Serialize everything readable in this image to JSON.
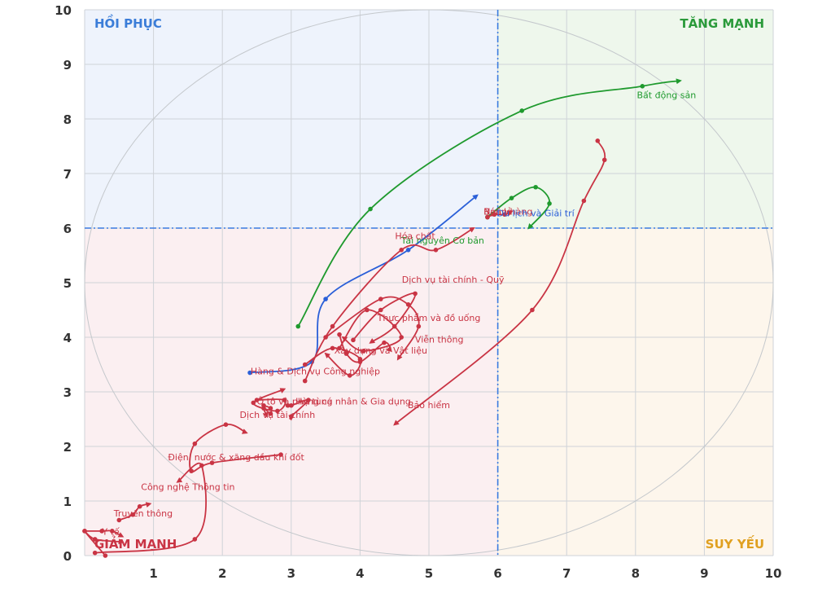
{
  "chart_data": {
    "type": "line",
    "x": {
      "min": 0,
      "max": 10,
      "ticks": [
        0,
        1,
        2,
        3,
        4,
        5,
        6,
        7,
        8,
        9,
        10
      ]
    },
    "y": {
      "min": 0,
      "max": 10,
      "ticks": [
        0,
        1,
        2,
        3,
        4,
        5,
        6,
        7,
        8,
        9,
        10
      ]
    },
    "threshold": {
      "x": 6,
      "y": 6
    },
    "grid": true,
    "quadrants": {
      "top_left": {
        "label": "HỒI PHỤC",
        "color": "#3b7dd8",
        "bg": "#eef3fc"
      },
      "top_right": {
        "label": "TĂNG MẠNH",
        "color": "#2a9a3a",
        "bg": "#eef7ec"
      },
      "bottom_left": {
        "label": "GIẢM MẠNH",
        "color": "#c93444",
        "bg": "#fbeff1"
      },
      "bottom_right": {
        "label": "SUY YẾU",
        "color": "#e0a020",
        "bg": "#fdf6ec"
      }
    },
    "colors": {
      "red": "#c93444",
      "green": "#1f9a2e",
      "blue": "#2a5fd8",
      "threshold": "#3a7be0"
    },
    "series": [
      {
        "name": "Bất động sản",
        "color": "green",
        "points": [
          [
            3.1,
            4.2
          ],
          [
            4.15,
            6.35
          ],
          [
            6.35,
            8.15
          ],
          [
            8.1,
            8.6
          ],
          [
            8.65,
            8.7
          ]
        ]
      },
      {
        "name": "Truyền thông",
        "color": "blue",
        "points": [
          [
            2.4,
            3.35
          ],
          [
            3.3,
            3.55
          ],
          [
            3.5,
            4.7
          ],
          [
            4.7,
            5.6
          ],
          [
            5.7,
            6.6
          ]
        ]
      },
      {
        "name": "Tài nguyên Cơ bản",
        "color": "green",
        "points": [
          [
            5.85,
            6.2
          ],
          [
            6.2,
            6.55
          ],
          [
            6.55,
            6.75
          ],
          [
            6.75,
            6.45
          ],
          [
            6.45,
            6.0
          ]
        ]
      },
      {
        "name": "Hóa chất",
        "color": "red",
        "points": [
          [
            7.45,
            7.6
          ],
          [
            7.55,
            7.25
          ],
          [
            7.25,
            6.5
          ],
          [
            6.5,
            4.5
          ],
          [
            4.5,
            2.4
          ]
        ]
      },
      {
        "name": "Dịch vụ tài chính - Quỹ",
        "color": "red",
        "points": [
          [
            3.2,
            3.2
          ],
          [
            3.6,
            4.2
          ],
          [
            4.6,
            5.6
          ],
          [
            5.1,
            5.6
          ],
          [
            5.65,
            6.0
          ]
        ]
      },
      {
        "name": "Thực phẩm và đồ uống",
        "color": "red",
        "points": [
          [
            3.5,
            4.0
          ],
          [
            4.3,
            4.7
          ],
          [
            4.7,
            4.6
          ],
          [
            4.85,
            4.2
          ],
          [
            4.55,
            3.6
          ]
        ]
      },
      {
        "name": "Viễn thông",
        "color": "red",
        "points": [
          [
            3.9,
            3.95
          ],
          [
            4.3,
            4.5
          ],
          [
            4.8,
            4.8
          ],
          [
            4.5,
            4.2
          ],
          [
            4.15,
            3.9
          ]
        ]
      },
      {
        "name": "Xây dựng và Vật liệu",
        "color": "red",
        "points": [
          [
            3.7,
            3.8
          ],
          [
            4.1,
            4.5
          ],
          [
            4.6,
            4.0
          ],
          [
            4.05,
            3.75
          ],
          [
            3.75,
            4.0
          ]
        ]
      },
      {
        "name": "Hàng & Dịch vụ Công nghiệp",
        "color": "red",
        "points": [
          [
            3.2,
            3.5
          ],
          [
            3.6,
            3.8
          ],
          [
            4.0,
            3.6
          ],
          [
            3.85,
            3.3
          ],
          [
            3.5,
            3.7
          ]
        ]
      },
      {
        "name": "Ô tô và phụ tùng",
        "color": "red",
        "points": [
          [
            2.5,
            2.85
          ],
          [
            2.9,
            2.85
          ],
          [
            2.8,
            2.65
          ],
          [
            2.45,
            2.8
          ],
          [
            2.9,
            3.05
          ]
        ]
      },
      {
        "name": "Hàng cá nhân & Gia dụng",
        "color": "red",
        "points": [
          [
            2.95,
            2.75
          ],
          [
            3.0,
            2.75
          ],
          [
            3.25,
            2.85
          ],
          [
            3.0,
            2.55
          ],
          [
            3.0,
            2.5
          ]
        ]
      },
      {
        "name": "Dịch vụ tài chính",
        "color": "red",
        "points": [
          [
            2.6,
            2.75
          ],
          [
            2.7,
            2.7
          ],
          [
            2.7,
            2.6
          ],
          [
            2.6,
            2.7
          ],
          [
            2.65,
            2.55
          ]
        ]
      },
      {
        "name": "Bảo hiểm",
        "color": "red",
        "points": [
          [
            3.7,
            4.05
          ],
          [
            3.8,
            3.7
          ],
          [
            4.0,
            3.55
          ],
          [
            4.35,
            3.9
          ],
          [
            4.45,
            3.75
          ]
        ]
      },
      {
        "name": "Điện, nước & xăng dầu khí đốt",
        "color": "red",
        "points": [
          [
            2.85,
            1.85
          ],
          [
            1.85,
            1.7
          ],
          [
            1.55,
            1.55
          ],
          [
            1.6,
            2.05
          ],
          [
            2.05,
            2.4
          ],
          [
            2.35,
            2.25
          ]
        ]
      },
      {
        "name": "Công nghệ Thông tin",
        "color": "red",
        "points": [
          [
            0.15,
            0.05
          ],
          [
            1.6,
            0.3
          ],
          [
            1.7,
            1.65
          ],
          [
            1.35,
            1.35
          ]
        ]
      },
      {
        "name": "Y tế",
        "color": "red",
        "points": [
          [
            0.0,
            0.45
          ],
          [
            0.25,
            0.45
          ],
          [
            0.4,
            0.45
          ],
          [
            0.55,
            0.35
          ]
        ]
      },
      {
        "name": "Ngân hàng",
        "color": "red",
        "points": [
          [
            0.3,
            0.0
          ],
          [
            0.0,
            0.45
          ],
          [
            0.15,
            0.3
          ],
          [
            0.55,
            0.25
          ]
        ]
      },
      {
        "name": "Bán lẻ",
        "color": "red",
        "points": [
          [
            0.5,
            0.65
          ],
          [
            0.7,
            0.75
          ],
          [
            0.8,
            0.9
          ],
          [
            0.95,
            0.95
          ]
        ]
      },
      {
        "name": "Du lịch và Giải trí",
        "color": "red",
        "points": [
          [
            5.85,
            6.2
          ],
          [
            5.95,
            6.25
          ],
          [
            6.1,
            6.25
          ],
          [
            6.2,
            6.3
          ]
        ]
      }
    ],
    "labels": [
      {
        "text": "Bất động sản",
        "x": 8.45,
        "y": 8.38,
        "color": "green"
      },
      {
        "text": "Tài nguyên Cơ bản",
        "x": 5.2,
        "y": 5.72,
        "color": "green"
      },
      {
        "text": "Truyền thông",
        "x": 0.85,
        "y": 0.72,
        "color": "red"
      },
      {
        "text": "Hóa chất",
        "x": 4.8,
        "y": 5.8,
        "color": "red"
      },
      {
        "text": "Dịch vụ tài chính - Quỹ",
        "x": 5.35,
        "y": 5.0,
        "color": "red"
      },
      {
        "text": "Thực phẩm và đồ uống",
        "x": 5.0,
        "y": 4.3,
        "color": "red"
      },
      {
        "text": "Viễn thông",
        "x": 5.15,
        "y": 3.9,
        "color": "red"
      },
      {
        "text": "Xây dựng và Vật liệu",
        "x": 4.3,
        "y": 3.7,
        "color": "red"
      },
      {
        "text": "Hàng & Dịch vụ Công nghiệp",
        "x": 3.35,
        "y": 3.32,
        "color": "red"
      },
      {
        "text": "Ô tô và phụ tùng",
        "x": 3.05,
        "y": 2.77,
        "color": "red"
      },
      {
        "text": "Hàng cá nhân & Gia dụng",
        "x": 3.9,
        "y": 2.77,
        "color": "red"
      },
      {
        "text": "Bảo hiểm",
        "x": 5.0,
        "y": 2.7,
        "color": "red"
      },
      {
        "text": "Dịch vụ tài chính",
        "x": 2.8,
        "y": 2.52,
        "color": "red"
      },
      {
        "text": "Điện, nước & xăng dầu khí đốt",
        "x": 2.2,
        "y": 1.75,
        "color": "red"
      },
      {
        "text": "Công nghệ Thông tin",
        "x": 1.5,
        "y": 1.2,
        "color": "red"
      },
      {
        "text": "Y tế",
        "x": 0.38,
        "y": 0.38,
        "color": "red"
      },
      {
        "text": "Ngân hàng",
        "x": 6.15,
        "y": 6.25,
        "color": "red"
      },
      {
        "text": "Bán lẻ",
        "x": 6.0,
        "y": 6.25,
        "color": "red"
      },
      {
        "text": "Du lịch và Giải trí",
        "x": 6.55,
        "y": 6.22,
        "color": "blue"
      }
    ]
  }
}
